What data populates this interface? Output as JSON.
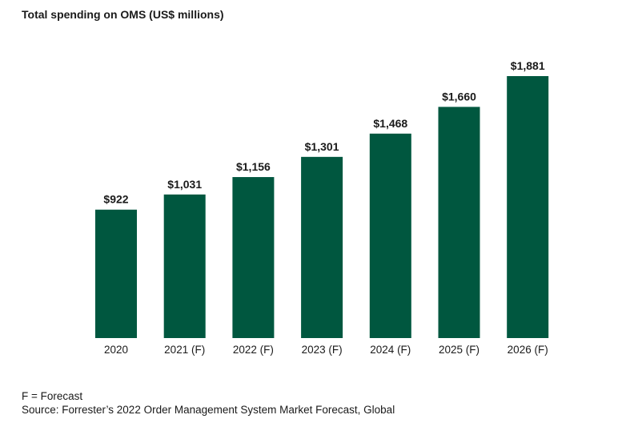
{
  "chart_data": {
    "type": "bar",
    "title": "Total spending on OMS (US$ millions)",
    "categories": [
      "2020",
      "2021 (F)",
      "2022 (F)",
      "2023 (F)",
      "2024 (F)",
      "2025 (F)",
      "2026 (F)"
    ],
    "values": [
      922,
      1031,
      1156,
      1301,
      1468,
      1660,
      1881
    ],
    "data_labels": [
      "$922",
      "$1,031",
      "$1,156",
      "$1,301",
      "$1,468",
      "$1,660",
      "$1,881"
    ],
    "xlabel": "",
    "ylabel": "",
    "ylim": [
      0,
      1881
    ],
    "grid": false,
    "bar_color": "#00573F"
  },
  "notes": {
    "legend": "F = Forecast",
    "source": "Source: Forrester’s 2022 Order Management System Market Forecast, Global"
  }
}
